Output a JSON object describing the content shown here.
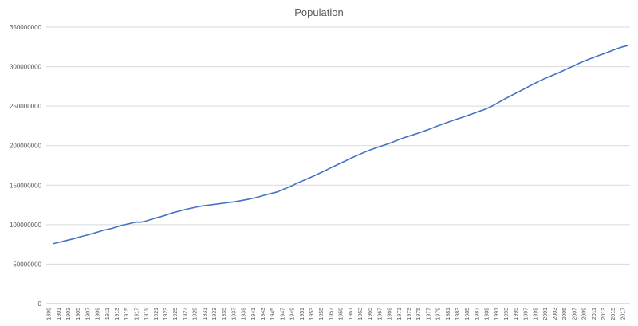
{
  "chart_data": {
    "type": "line",
    "title": "Population",
    "xlabel": "",
    "ylabel": "",
    "ylim": [
      0,
      350000000
    ],
    "yticks": [
      "0",
      "50000000",
      "100000000",
      "150000000",
      "200000000",
      "250000000",
      "300000000",
      "350000000"
    ],
    "grid": true,
    "legend": "none",
    "line_color": "#4472c4",
    "x_tick_labels": [
      "1899",
      "1901",
      "1903",
      "1905",
      "1907",
      "1909",
      "1911",
      "1913",
      "1915",
      "1917",
      "1919",
      "1921",
      "1923",
      "1925",
      "1927",
      "1929",
      "1931",
      "1933",
      "1935",
      "1937",
      "1939",
      "1941",
      "1943",
      "1945",
      "1947",
      "1949",
      "1951",
      "1953",
      "1955",
      "1957",
      "1959",
      "1961",
      "1963",
      "1965",
      "1967",
      "1969",
      "1971",
      "1973",
      "1975",
      "1977",
      "1979",
      "1981",
      "1983",
      "1985",
      "1987",
      "1989",
      "1991",
      "1993",
      "1995",
      "1997",
      "1999",
      "2001",
      "2003",
      "2005",
      "2007",
      "2009",
      "2011",
      "2013",
      "2015",
      "2017"
    ],
    "x": [
      1900,
      1901,
      1902,
      1903,
      1904,
      1905,
      1906,
      1907,
      1908,
      1909,
      1910,
      1911,
      1912,
      1913,
      1914,
      1915,
      1916,
      1917,
      1918,
      1919,
      1920,
      1921,
      1922,
      1923,
      1924,
      1925,
      1926,
      1927,
      1928,
      1929,
      1930,
      1931,
      1932,
      1933,
      1934,
      1935,
      1936,
      1937,
      1938,
      1939,
      1940,
      1941,
      1942,
      1943,
      1944,
      1945,
      1946,
      1947,
      1948,
      1949,
      1950,
      1951,
      1952,
      1953,
      1954,
      1955,
      1956,
      1957,
      1958,
      1959,
      1960,
      1961,
      1962,
      1963,
      1964,
      1965,
      1966,
      1967,
      1968,
      1969,
      1970,
      1971,
      1972,
      1973,
      1974,
      1975,
      1976,
      1977,
      1978,
      1979,
      1980,
      1981,
      1982,
      1983,
      1984,
      1985,
      1986,
      1987,
      1988,
      1989,
      1990,
      1991,
      1992,
      1993,
      1994,
      1995,
      1996,
      1997,
      1998,
      1999,
      2000,
      2001,
      2002,
      2003,
      2004,
      2005,
      2006,
      2007,
      2008,
      2009,
      2010,
      2011,
      2012,
      2013,
      2014,
      2015,
      2016,
      2017,
      2018
    ],
    "series": [
      {
        "values": [
          76000000,
          77500000,
          79000000,
          80500000,
          82000000,
          83800000,
          85500000,
          87000000,
          88700000,
          90500000,
          92400000,
          93900000,
          95300000,
          97200000,
          99100000,
          100500000,
          101900000,
          103300000,
          103200000,
          104500000,
          106500000,
          108500000,
          110000000,
          111900000,
          114100000,
          115800000,
          117400000,
          119000000,
          120500000,
          121800000,
          123100000,
          124000000,
          124800000,
          125600000,
          126400000,
          127200000,
          128000000,
          128800000,
          129800000,
          130900000,
          132100000,
          133400000,
          134900000,
          136700000,
          138400000,
          139900000,
          141400000,
          144100000,
          146600000,
          149200000,
          152300000,
          154900000,
          157600000,
          160200000,
          163000000,
          165900000,
          168900000,
          172000000,
          174900000,
          177800000,
          180700000,
          183700000,
          186500000,
          189200000,
          191900000,
          194300000,
          196600000,
          198700000,
          200700000,
          202700000,
          205100000,
          207700000,
          209900000,
          211900000,
          213900000,
          215900000,
          218000000,
          220200000,
          222600000,
          225100000,
          227200000,
          229500000,
          231700000,
          233800000,
          235800000,
          237900000,
          240100000,
          242300000,
          244500000,
          246800000,
          249600000,
          253000000,
          256500000,
          259900000,
          263100000,
          266300000,
          269400000,
          272600000,
          275900000,
          279000000,
          282200000,
          285000000,
          287600000,
          290100000,
          292800000,
          295500000,
          298400000,
          301200000,
          304100000,
          306800000,
          309300000,
          311600000,
          313900000,
          316100000,
          318400000,
          320700000,
          323100000,
          325100000,
          326700000
        ]
      }
    ]
  }
}
